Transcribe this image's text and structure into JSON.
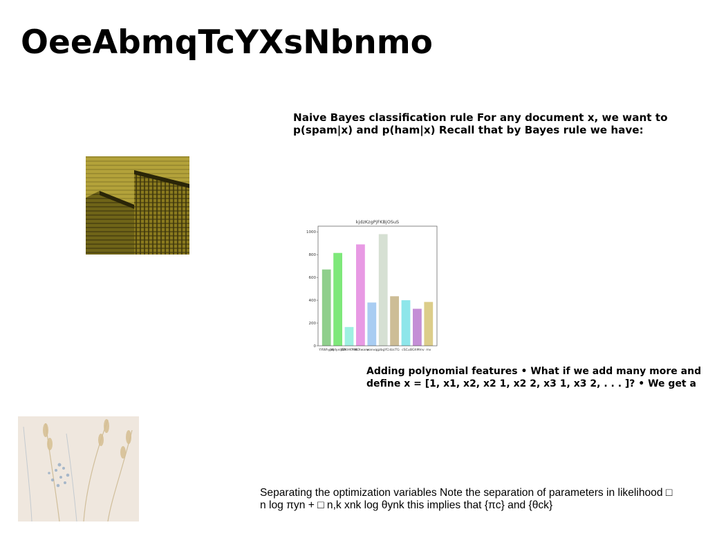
{
  "slide": {
    "title": "OeeAbmqTcYXsNbnmo",
    "text_blocks": [
      "Naive Bayes classification rule For any document x, we want to p(spam|x) and p(ham|x) Recall that by Bayes rule we have:",
      "Adding polynomial features • What if we add many more and define x = [1, x1, x2, x2 1, x2 2, x3 1, x3 2, . . . ]? • We get a",
      "Separating the optimization variables Note the separation of parameters in likelihood □ n log πyn + □ n,k xnk log θynk this implies that {πc} and {θck}"
    ]
  },
  "chart_data": {
    "type": "bar",
    "title": "kjdzKzgPjFKBjOSuS",
    "categories": [
      "YXWhyvq",
      "jWdyxIjEA",
      "dBKHKYHk",
      "HMOIwanx",
      "wanvq",
      "gzbgYCi",
      "dzcTG",
      "cSCu",
      "BGhMmv",
      "mv"
    ],
    "values": [
      670,
      815,
      165,
      890,
      380,
      980,
      435,
      400,
      325,
      385
    ],
    "colors": [
      "#8fcf8c",
      "#7ee87a",
      "#9ff0e2",
      "#e89ae4",
      "#a9cdf2",
      "#d6e0d3",
      "#cdbd96",
      "#8ee6ea",
      "#c48ed6",
      "#dccd8a"
    ],
    "ylim": [
      0,
      1050
    ],
    "yticks": [
      0,
      200,
      400,
      600,
      800,
      1000
    ],
    "xlabel": "",
    "ylabel": ""
  }
}
